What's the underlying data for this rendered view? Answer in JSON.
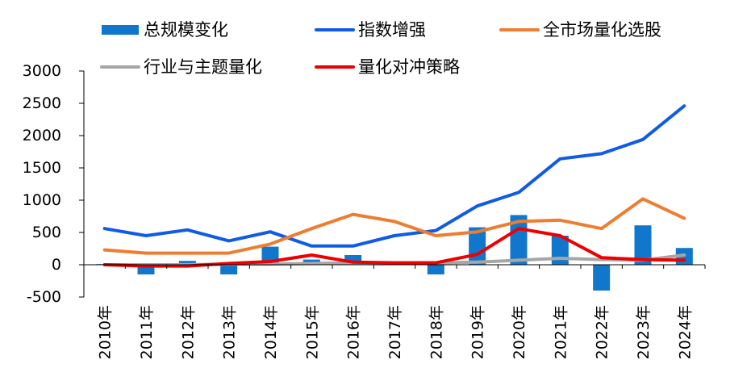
{
  "chart_data": {
    "type": "bar+line",
    "title": "",
    "xlabel": "",
    "ylabel": "",
    "ylim": [
      -500,
      3000
    ],
    "yticks": [
      3000,
      2500,
      2000,
      1500,
      1000,
      500,
      0,
      -500
    ],
    "grid": false,
    "legend_position": "top",
    "categories": [
      "2010年",
      "2011年",
      "2012年",
      "2013年",
      "2014年",
      "2015年",
      "2016年",
      "2017年",
      "2018年",
      "2019年",
      "2020年",
      "2021年",
      "2022年",
      "2023年",
      "2024年"
    ],
    "bar_series": {
      "name": "总规模变化",
      "color": "#1177cc",
      "values": [
        10,
        -150,
        60,
        -150,
        280,
        80,
        150,
        20,
        -150,
        580,
        770,
        450,
        -400,
        610,
        260
      ]
    },
    "line_series": [
      {
        "name": "指数增强",
        "color": "#0f5be6",
        "values": [
          560,
          450,
          540,
          370,
          510,
          290,
          290,
          450,
          530,
          910,
          1120,
          1640,
          1720,
          1940,
          2460
        ]
      },
      {
        "name": "全市场量化选股",
        "color": "#ed7d31",
        "values": [
          230,
          180,
          180,
          180,
          320,
          560,
          780,
          670,
          450,
          510,
          670,
          690,
          560,
          1020,
          720
        ]
      },
      {
        "name": "行业与主题量化",
        "color": "#a6a6a6",
        "values": [
          0,
          0,
          0,
          10,
          10,
          20,
          30,
          30,
          30,
          40,
          70,
          100,
          80,
          70,
          150
        ]
      },
      {
        "name": "量化对冲策略",
        "color": "#ee0000",
        "values": [
          0,
          -20,
          -20,
          20,
          50,
          150,
          40,
          30,
          30,
          160,
          560,
          450,
          110,
          80,
          70
        ]
      }
    ]
  }
}
